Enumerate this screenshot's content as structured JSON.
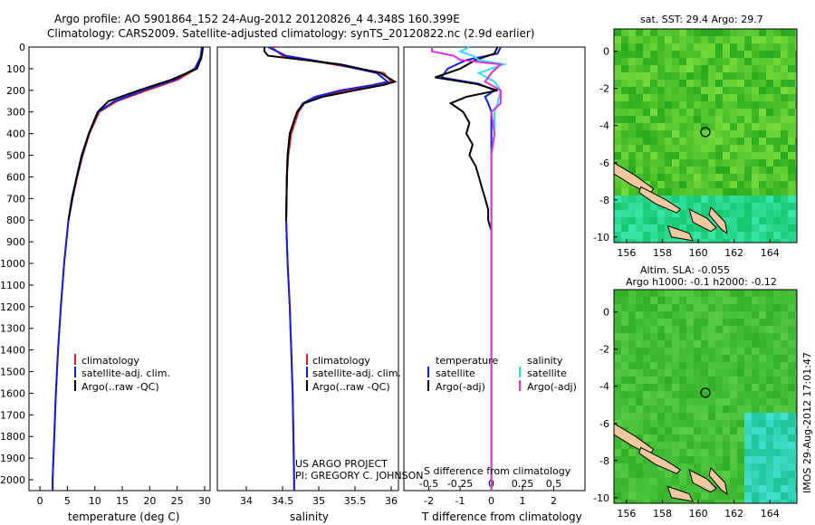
{
  "header": {
    "line1": "Argo profile: AO 5901864_152 24-Aug-2012 20120826_4 4.348S 160.399E",
    "line2": "Climatology: CARS2009. Satellite-adjusted climatology: synTS_20120822.nc (2.9d earlier)"
  },
  "colors": {
    "climatology": "#e02020",
    "satellite": "#1020e0",
    "argo": "#000000",
    "sal_satellite": "#30e0f0",
    "sal_argo": "#e030e0"
  },
  "chart_data": [
    {
      "type": "line",
      "id": "temperature",
      "xlabel": "temperature (deg C)",
      "xlim": [
        -2,
        31
      ],
      "ylim": [
        0,
        2050
      ],
      "xticks": [
        "0",
        "5",
        "10",
        "15",
        "20",
        "25",
        "30"
      ],
      "yticks": [
        "0",
        "100",
        "200",
        "300",
        "400",
        "500",
        "600",
        "700",
        "800",
        "900",
        "1000",
        "1100",
        "1200",
        "1300",
        "1400",
        "1500",
        "1600",
        "1700",
        "1800",
        "1900",
        "2000"
      ],
      "legend": [
        "climatology",
        "satellite-adj. clim.",
        "Argo(..raw -QC)"
      ],
      "series": [
        {
          "name": "climatology",
          "depth": [
            0,
            20,
            50,
            100,
            150,
            200,
            250,
            300,
            400,
            500,
            600,
            700,
            800,
            900,
            1000,
            1200,
            1400,
            1600,
            1800,
            2000,
            2050
          ],
          "values": [
            29.6,
            29.5,
            29.3,
            28.5,
            25.2,
            19.5,
            14.0,
            10.8,
            9.0,
            7.8,
            6.8,
            5.9,
            5.2,
            4.8,
            4.4,
            3.8,
            3.3,
            2.9,
            2.6,
            2.3,
            2.3
          ]
        },
        {
          "name": "satellite-adj. clim.",
          "depth": [
            0,
            20,
            50,
            100,
            150,
            200,
            250,
            300,
            400,
            500,
            600,
            700,
            800,
            900,
            1000,
            1200,
            1400,
            1600,
            1800,
            2000,
            2050
          ],
          "values": [
            29.5,
            29.4,
            29.2,
            28.2,
            24.6,
            18.8,
            13.6,
            10.6,
            8.9,
            7.7,
            6.7,
            5.8,
            5.2,
            4.8,
            4.4,
            3.8,
            3.3,
            2.9,
            2.6,
            2.3,
            2.3
          ]
        },
        {
          "name": "Argo(..raw -QC)",
          "depth": [
            0,
            20,
            50,
            100,
            150,
            200,
            250,
            300,
            400,
            500,
            600,
            700,
            800
          ],
          "values": [
            29.7,
            29.6,
            29.4,
            28.6,
            24.0,
            18.0,
            12.5,
            10.5,
            8.9,
            7.6,
            6.7,
            5.9,
            5.2
          ]
        }
      ]
    },
    {
      "type": "line",
      "id": "salinity",
      "xlabel": "salinity",
      "xlim": [
        33.6,
        36.1
      ],
      "ylim": [
        0,
        2050
      ],
      "xticks": [
        "34",
        "34.5",
        "35",
        "35.5",
        "36"
      ],
      "legend": [
        "climatology",
        "satellite-adj. clim.",
        "Argo(..raw -QC)"
      ],
      "series": [
        {
          "name": "climatology",
          "depth": [
            0,
            40,
            80,
            120,
            160,
            175,
            200,
            230,
            260,
            300,
            400,
            500,
            600,
            800,
            1000,
            1200,
            1400,
            1600,
            1800,
            2000,
            2050
          ],
          "values": [
            34.35,
            34.5,
            35.2,
            35.9,
            36.0,
            35.8,
            35.4,
            35.0,
            34.8,
            34.72,
            34.62,
            34.58,
            34.56,
            34.55,
            34.57,
            34.6,
            34.62,
            34.64,
            34.65,
            34.66,
            34.66
          ]
        },
        {
          "name": "satellite-adj. clim.",
          "depth": [
            0,
            40,
            80,
            120,
            160,
            175,
            200,
            230,
            260,
            300,
            400,
            500,
            600,
            800,
            1000,
            1200,
            1400,
            1600,
            1800,
            2000,
            2050
          ],
          "values": [
            34.3,
            34.55,
            35.25,
            35.8,
            35.95,
            35.75,
            35.3,
            34.95,
            34.78,
            34.7,
            34.6,
            34.57,
            34.56,
            34.55,
            34.57,
            34.6,
            34.62,
            34.64,
            34.65,
            34.66,
            34.66
          ]
        },
        {
          "name": "Argo(..raw -QC)",
          "depth": [
            0,
            20,
            40,
            60,
            80,
            120,
            160,
            175,
            200,
            230,
            260,
            300,
            400,
            500,
            600,
            800
          ],
          "values": [
            34.25,
            34.25,
            34.3,
            34.8,
            35.3,
            35.85,
            36.05,
            35.9,
            35.5,
            35.05,
            34.8,
            34.7,
            34.6,
            34.57,
            34.56,
            34.55
          ]
        }
      ]
    },
    {
      "type": "line",
      "id": "difference",
      "xlabel": "T difference from climatology",
      "xlabel_top": "S difference from climatology",
      "xlim": [
        -2.8,
        3.0
      ],
      "ylim": [
        0,
        2050
      ],
      "xticks": [
        "-2",
        "-1",
        "0",
        "1",
        "2"
      ],
      "xticks_top": [
        "-0.5",
        "-0.25",
        "0",
        "0.25",
        "0.5"
      ],
      "legend_t_title": "temperature",
      "legend_s_title": "salinity",
      "legend_items": [
        "satellite",
        "Argo(-adj)",
        "satellite",
        "Argo(-adj)"
      ],
      "series": [
        {
          "name": "temperature satellite",
          "depth": [
            0,
            30,
            60,
            100,
            140,
            170,
            200,
            230,
            260,
            300,
            400,
            500,
            600,
            800,
            1000,
            1200,
            1400,
            1600,
            1800,
            2000,
            2050
          ],
          "values": [
            0.3,
            0.2,
            -0.8,
            -1.4,
            -1.6,
            -0.4,
            0.1,
            -0.2,
            -0.1,
            0.0,
            0.0,
            0.0,
            0.0,
            0.0,
            0.0,
            0.0,
            0.0,
            0.0,
            0.0,
            0.0,
            0.0
          ]
        },
        {
          "name": "temperature Argo(-adj)",
          "depth": [
            0,
            30,
            60,
            100,
            140,
            170,
            200,
            230,
            260,
            300,
            350,
            400,
            450,
            500,
            550,
            600,
            650,
            700,
            750,
            800,
            850
          ],
          "values": [
            0.2,
            0.1,
            -0.5,
            -1.0,
            -1.8,
            -0.5,
            0.2,
            -0.8,
            -1.3,
            -0.9,
            -0.7,
            -0.8,
            -0.6,
            -0.7,
            -0.5,
            -0.4,
            -0.3,
            -0.2,
            -0.1,
            -0.1,
            0.0
          ]
        },
        {
          "name": "salinity satellite",
          "depth": [
            0,
            20,
            40,
            60,
            80,
            120,
            160,
            200,
            260,
            300,
            400,
            500,
            700,
            900,
            1100,
            1300,
            1500,
            1700,
            1900,
            2050
          ],
          "values": [
            -0.7,
            -1.0,
            -0.6,
            -0.4,
            0.4,
            -0.4,
            0.1,
            0.3,
            0.2,
            0.1,
            0.1,
            0.0,
            0.0,
            0.0,
            0.0,
            0.0,
            0.0,
            0.0,
            0.0,
            0.0
          ]
        },
        {
          "name": "salinity Argo(-adj)",
          "depth": [
            0,
            20,
            40,
            60,
            80,
            120,
            160,
            200,
            260,
            300,
            400,
            500,
            700,
            900,
            1100,
            1300,
            1500,
            1700,
            1900,
            2050
          ],
          "values": [
            -1.9,
            -1.9,
            -1.2,
            -1.0,
            0.3,
            0.0,
            -0.2,
            0.3,
            0.3,
            0.0,
            0.1,
            0.0,
            0.0,
            0.0,
            0.0,
            0.0,
            0.0,
            0.0,
            0.0,
            0.0
          ]
        }
      ]
    },
    {
      "type": "heatmap",
      "id": "sst_map",
      "title": "sat. SST: 29.4 Argo: 29.7",
      "xticks": [
        "156",
        "158",
        "160",
        "162",
        "164"
      ],
      "yticks": [
        "0",
        "-2",
        "-4",
        "-6",
        "-8",
        "-10"
      ],
      "xlim": [
        155.3,
        165.5
      ],
      "ylim": [
        -10.3,
        1.2
      ],
      "marker": {
        "lon": 160.4,
        "lat": -4.35
      }
    },
    {
      "type": "heatmap",
      "id": "sla_map",
      "title": "Altim. SLA: -0.055",
      "subtitle": "Argo h1000: -0.1 h2000: -0.12",
      "xticks": [
        "156",
        "158",
        "160",
        "162",
        "164"
      ],
      "yticks": [
        "0",
        "-2",
        "-4",
        "-6",
        "-8",
        "-10"
      ],
      "xlim": [
        155.3,
        165.5
      ],
      "ylim": [
        -10.3,
        1.2
      ],
      "marker": {
        "lon": 160.4,
        "lat": -4.35
      }
    }
  ],
  "credits": {
    "project": "US ARGO PROJECT",
    "pi": "PI: GREGORY C. JOHNSON",
    "stamp": "IMOS 29-Aug-2012 17:01:47"
  }
}
